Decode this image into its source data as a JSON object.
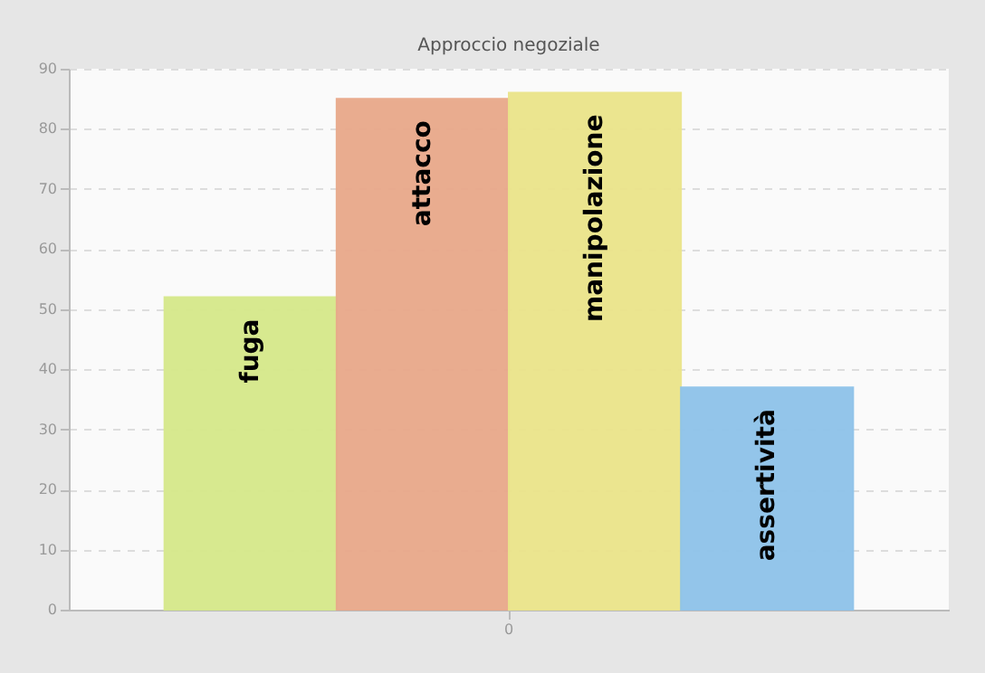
{
  "chart_data": {
    "type": "bar",
    "title": "Approccio negoziale",
    "categories": [
      "0"
    ],
    "series": [
      {
        "name": "fuga",
        "color": "#d6e98a",
        "values": [
          52
        ]
      },
      {
        "name": "attacco",
        "color": "#e9a88a",
        "values": [
          85
        ]
      },
      {
        "name": "manipolazione",
        "color": "#ebe48a",
        "values": [
          86
        ]
      },
      {
        "name": "assertività",
        "color": "#8ec3ea",
        "values": [
          37
        ]
      }
    ],
    "ylim": [
      0,
      90
    ],
    "yticks": [
      0,
      10,
      20,
      30,
      40,
      50,
      60,
      70,
      80,
      90
    ],
    "grid": "y",
    "legend": false
  }
}
